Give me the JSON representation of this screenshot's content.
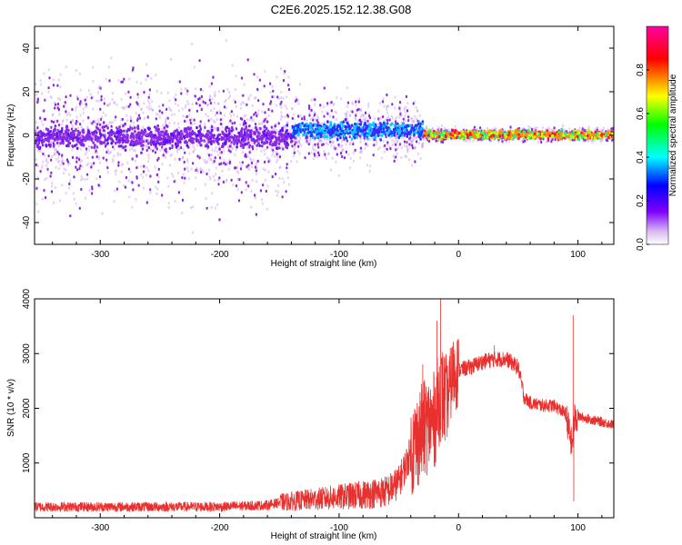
{
  "title": "C2E6.2025.152.12.38.G08",
  "chart_data": [
    {
      "type": "heatmap",
      "xlabel": "Height of straight line (km)",
      "ylabel": "Frequency (Hz)",
      "xlim": [
        -355,
        130
      ],
      "ylim": [
        -50,
        50
      ],
      "xticks": [
        -300,
        -200,
        -100,
        0,
        100
      ],
      "yticks": [
        -40,
        -20,
        0,
        20,
        40
      ],
      "colorbar": {
        "label": "Normalized spectral amplitude",
        "range": [
          0,
          1
        ],
        "ticks": [
          0.0,
          0.2,
          0.4,
          0.6,
          0.8
        ],
        "colormap": "rainbow (white-violet-blue-cyan-green-yellow-red-magenta)"
      },
      "bands": [
        {
          "x": [
            -355,
            -140
          ],
          "center_hz": 0,
          "core_halfwidth_hz": 8,
          "scatter_halfwidth_hz": 50,
          "amplitude": [
            0.1,
            0.25
          ]
        },
        {
          "x": [
            -140,
            -30
          ],
          "center_hz": 3,
          "core_halfwidth_hz": 6,
          "scatter_halfwidth_hz": 25,
          "amplitude": [
            0.3,
            0.5
          ]
        },
        {
          "x": [
            -30,
            130
          ],
          "center_hz": 1,
          "core_halfwidth_hz": 3,
          "scatter_halfwidth_hz": 5,
          "amplitude": [
            0.5,
            0.95
          ]
        }
      ]
    },
    {
      "type": "line",
      "xlabel": "Height of straight line (km)",
      "ylabel": "SNR (10 * v/v)",
      "xlim": [
        -355,
        130
      ],
      "ylim": [
        0,
        4000
      ],
      "xticks": [
        -300,
        -200,
        -100,
        0,
        100
      ],
      "yticks": [
        1000,
        2000,
        3000,
        4000
      ],
      "color": "#e8302e",
      "series": [
        {
          "x": [
            -355,
            -300,
            -250,
            -200,
            -160,
            -150,
            -130,
            -100,
            -80,
            -60,
            -50,
            -40,
            -30,
            -20,
            -15,
            -10,
            -5,
            0,
            10,
            20,
            30,
            40,
            50,
            55,
            60,
            70,
            80,
            90,
            95,
            97,
            100,
            110,
            120,
            130
          ],
          "values": [
            200,
            200,
            200,
            200,
            230,
            280,
            320,
            380,
            420,
            480,
            650,
            1200,
            1600,
            1800,
            2300,
            2100,
            2600,
            2700,
            2750,
            2850,
            2900,
            2900,
            2750,
            2200,
            2100,
            2050,
            2050,
            1900,
            1300,
            1800,
            1850,
            1800,
            1750,
            1700
          ],
          "spikes": [
            [
              -18,
              3600
            ],
            [
              -15,
              4000
            ],
            [
              -30,
              2800
            ],
            [
              96,
              3700
            ],
            [
              96.5,
              300
            ],
            [
              30,
              3150
            ]
          ]
        }
      ]
    }
  ]
}
